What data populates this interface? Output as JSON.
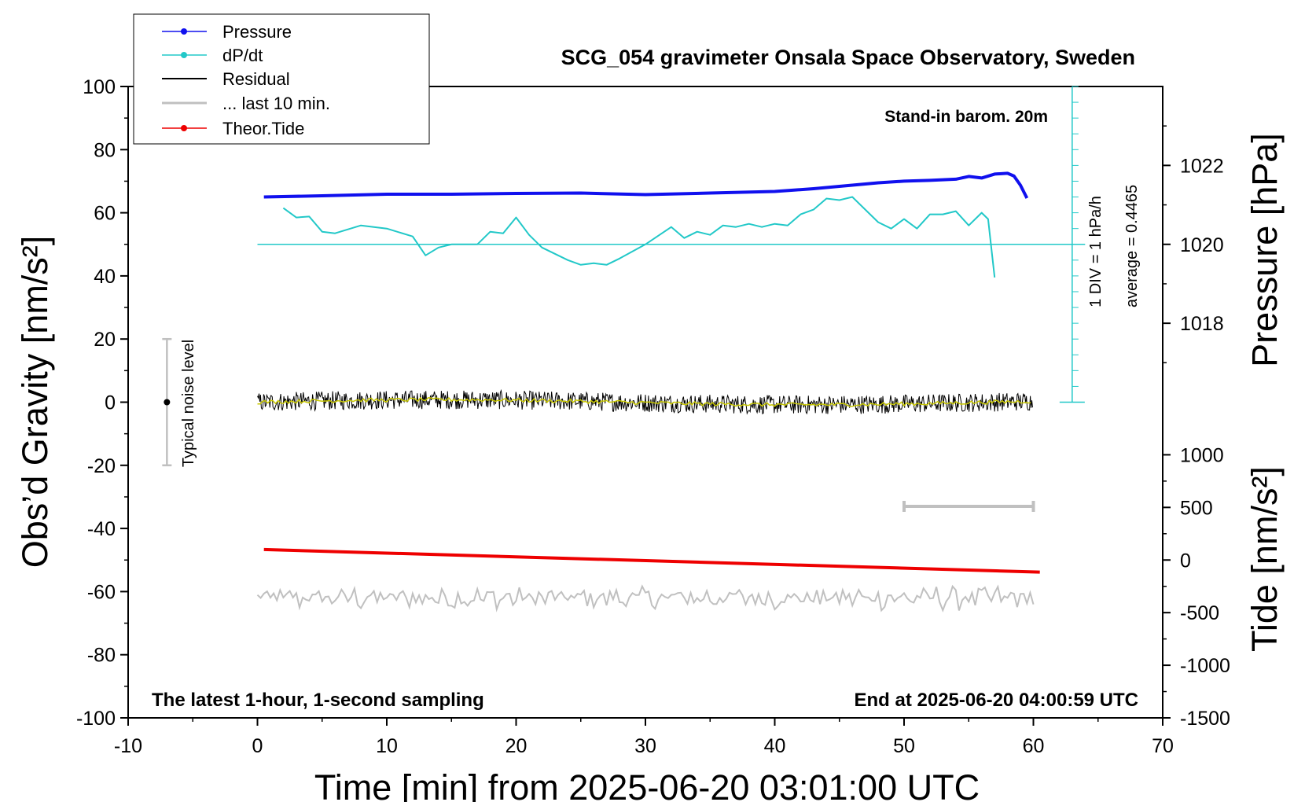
{
  "chart_data": {
    "type": "line",
    "title": "SCG_054 gravimeter Onsala Space Observatory, Sweden",
    "subtitle": "Stand-in barom. 20m",
    "xlabel": "Time [min] from 2025-06-20 03:01:00 UTC",
    "ylabel_left": "Obs’d Gravity [nm/s²]",
    "ylabel_pressure": "Pressure [hPa]",
    "ylabel_tide": "Tide [nm/s²]",
    "bottom_left_note": "The latest 1-hour, 1-second sampling",
    "bottom_right_note": "End at 2025-06-20 04:00:59 UTC",
    "noise_label": "Typical noise level",
    "dpdt_scale_label": "1 DIV = 1 hPa/h",
    "dpdt_average_label": "average = 0.4465",
    "xlim": [
      -10,
      70
    ],
    "xticks": [
      "-10",
      "0",
      "10",
      "20",
      "30",
      "40",
      "50",
      "60",
      "70"
    ],
    "ylim_gravity": [
      -100,
      100
    ],
    "yticks_gravity": [
      "100",
      "80",
      "60",
      "40",
      "20",
      "0",
      "-20",
      "-40",
      "-60",
      "-80",
      "-100"
    ],
    "pressure_ticks": [
      "1022",
      "1020",
      "1018"
    ],
    "tide_ticks": [
      "1000",
      "500",
      "0",
      "-500",
      "-1000",
      "-1500"
    ],
    "legend": [
      {
        "name": "Pressure",
        "color": "#1010ee",
        "marker": true
      },
      {
        "name": "dP/dt",
        "color": "#22c8c8",
        "marker": true
      },
      {
        "name": "Residual",
        "color": "#000000",
        "marker": false
      },
      {
        "name": "... last 10 min.",
        "color": "#c0c0c0",
        "marker": false
      },
      {
        "name": "Theor.Tide",
        "color": "#ee0000",
        "marker": true
      }
    ],
    "series": {
      "pressure": {
        "color": "#1010ee",
        "unit": "hPa",
        "x": [
          0.5,
          5,
          10,
          15,
          20,
          25,
          30,
          35,
          40,
          43,
          46,
          48,
          50,
          52,
          54,
          55,
          56,
          57,
          58,
          58.5,
          59,
          59.5
        ],
        "y": [
          1021.2,
          1021.23,
          1021.27,
          1021.27,
          1021.29,
          1021.3,
          1021.26,
          1021.3,
          1021.34,
          1021.41,
          1021.5,
          1021.56,
          1021.6,
          1021.62,
          1021.65,
          1021.72,
          1021.68,
          1021.78,
          1021.8,
          1021.73,
          1021.5,
          1021.17
        ]
      },
      "dpdt": {
        "color": "#22c8c8",
        "baseline_gravity": 50,
        "unit_per_div": "hPa/h",
        "x": [
          2,
          3,
          4,
          5,
          6,
          8,
          10,
          12,
          13,
          14,
          15,
          17,
          18,
          19,
          20,
          21,
          22,
          24,
          25,
          26,
          27,
          28,
          30,
          32,
          33,
          34,
          35,
          36,
          37,
          38,
          39,
          40,
          41,
          42,
          43,
          44,
          45,
          46,
          47,
          48,
          49,
          50,
          51,
          52,
          53,
          54,
          55,
          56,
          56.5,
          57
        ],
        "y": [
          61.5,
          58.5,
          58.8,
          54,
          53.5,
          56,
          55,
          52.5,
          46.5,
          49,
          50,
          50,
          54,
          53.5,
          58.5,
          53,
          49,
          45,
          43.5,
          44,
          43.5,
          45.5,
          50,
          55.5,
          52,
          54,
          53,
          56,
          55.5,
          56.5,
          55.5,
          56.5,
          56,
          59.5,
          61,
          64.5,
          64,
          65,
          61,
          57,
          55,
          58,
          55,
          59.5,
          59.5,
          60.5,
          56,
          60,
          58,
          39.5
        ]
      },
      "residual": {
        "color": "#000000",
        "x_range": [
          0,
          60
        ],
        "level": 0,
        "spread": 3
      },
      "residual_smoothed": {
        "color": "#c8c800",
        "x_range": [
          0,
          60
        ],
        "level": 0
      },
      "last_10_min": {
        "color": "#c0c0c0",
        "x_range": [
          0,
          60
        ],
        "level": -62,
        "spread": 3
      },
      "last_10_min_bar": {
        "color": "#c0c0c0",
        "x": [
          50,
          60
        ],
        "y": -33
      },
      "theor_tide": {
        "color": "#ee0000",
        "unit": "nm/s²",
        "x": [
          0.5,
          60.5
        ],
        "y": [
          100,
          -115
        ]
      },
      "noise_bar": {
        "x": -7,
        "y": [
          -20,
          20
        ],
        "center": 0
      }
    }
  }
}
